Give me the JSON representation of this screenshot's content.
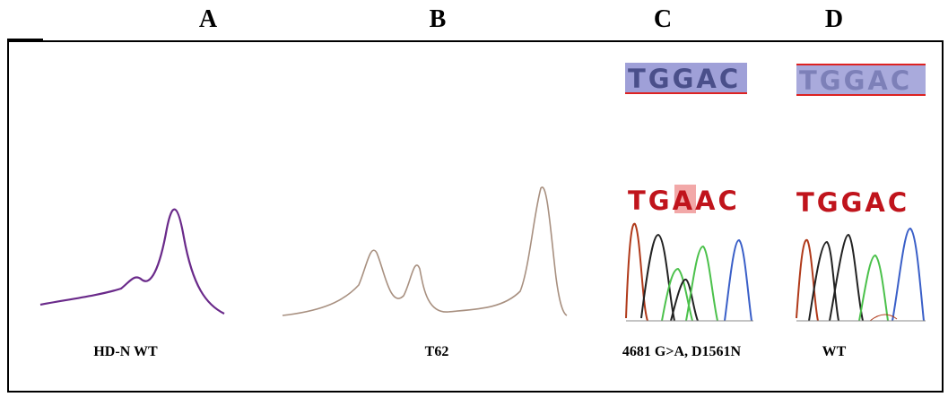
{
  "panels": [
    {
      "letter": "A",
      "caption": "HD-N WT"
    },
    {
      "letter": "B",
      "caption": "T62"
    },
    {
      "letter": "C",
      "caption": "4681 G>A, D1561N",
      "reference": "TGGAC",
      "sequence": "TGAAC"
    },
    {
      "letter": "D",
      "caption": "WT",
      "reference": "TGGAC",
      "sequence": "TGGAC"
    }
  ]
}
